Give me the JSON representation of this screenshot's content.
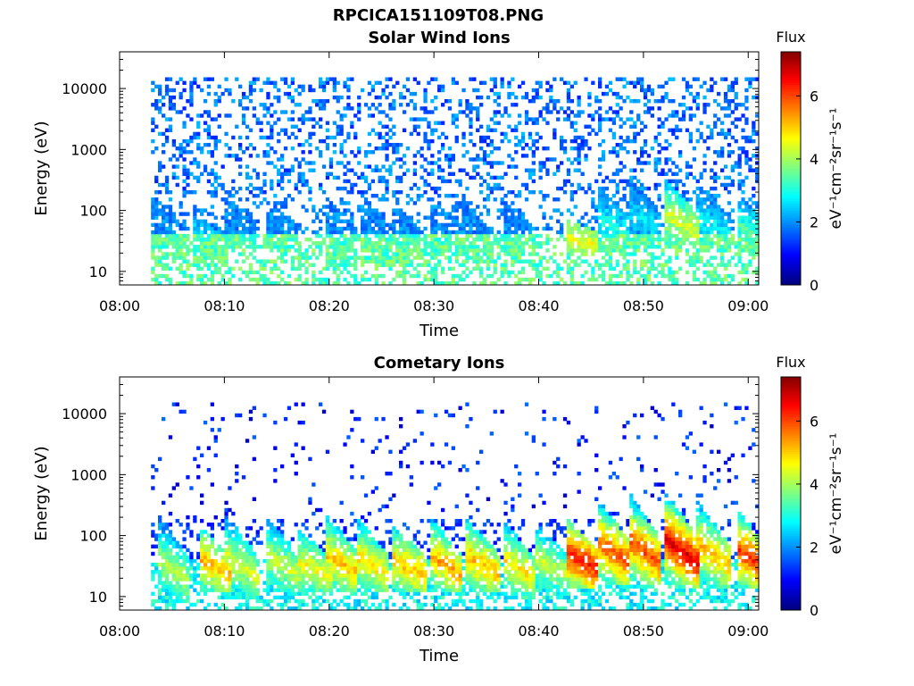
{
  "figure": {
    "title": "RPCICA151109T08.PNG"
  },
  "colorbar": {
    "label": "Flux",
    "unit_label": "eV⁻¹cm⁻²sr⁻¹s⁻¹",
    "ticks": [
      "0",
      "2",
      "4",
      "6"
    ],
    "range": [
      0,
      7.4
    ],
    "colormap": "jet"
  },
  "chart_data": [
    {
      "type": "heatmap",
      "title": "Solar Wind Ions",
      "xlabel": "Time",
      "ylabel": "Energy (eV)",
      "xticks": [
        "08:00",
        "08:10",
        "08:20",
        "08:30",
        "08:40",
        "08:50",
        "09:00"
      ],
      "xlim_minutes": [
        0,
        61
      ],
      "yticks": [
        "10",
        "100",
        "1000",
        "10000"
      ],
      "ylim": [
        6,
        40000
      ],
      "yscale": "log",
      "data_start_minute": 3,
      "data_end_minute": 61,
      "background_flux": 1.5,
      "low_energy_flux": 3.4,
      "bursts": [
        {
          "t": 3.5,
          "peak_flux": 1.6,
          "e_high": 130,
          "e_low": 30
        },
        {
          "t": 7.5,
          "peak_flux": 3.0,
          "e_high": 70,
          "e_low": 15
        },
        {
          "t": 10.5,
          "peak_flux": 1.5,
          "e_high": 130,
          "e_low": 30
        },
        {
          "t": 14.5,
          "peak_flux": 1.6,
          "e_high": 110,
          "e_low": 25
        },
        {
          "t": 20.0,
          "peak_flux": 1.4,
          "e_high": 150,
          "e_low": 14
        },
        {
          "t": 23.5,
          "peak_flux": 1.5,
          "e_high": 140,
          "e_low": 16
        },
        {
          "t": 26.5,
          "peak_flux": 1.6,
          "e_high": 100,
          "e_low": 15
        },
        {
          "t": 30.0,
          "peak_flux": 1.4,
          "e_high": 140,
          "e_low": 20
        },
        {
          "t": 33.0,
          "peak_flux": 1.5,
          "e_high": 120,
          "e_low": 16
        },
        {
          "t": 37.0,
          "peak_flux": 1.5,
          "e_high": 120,
          "e_low": 18
        },
        {
          "t": 43.0,
          "peak_flux": 4.6,
          "e_high": 60,
          "e_low": 22
        },
        {
          "t": 46.0,
          "peak_flux": 3.0,
          "e_high": 200,
          "e_low": 25
        },
        {
          "t": 49.0,
          "peak_flux": 2.6,
          "e_high": 300,
          "e_low": 30
        },
        {
          "t": 52.5,
          "peak_flux": 4.4,
          "e_high": 250,
          "e_low": 30
        },
        {
          "t": 55.5,
          "peak_flux": 2.8,
          "e_high": 220,
          "e_low": 25
        },
        {
          "t": 59.5,
          "peak_flux": 3.3,
          "e_high": 120,
          "e_low": 25
        }
      ]
    },
    {
      "type": "heatmap",
      "title": "Cometary Ions",
      "xlabel": "Time",
      "ylabel": "Energy (eV)",
      "xticks": [
        "08:00",
        "08:10",
        "08:20",
        "08:30",
        "08:40",
        "08:50",
        "09:00"
      ],
      "xlim_minutes": [
        0,
        61
      ],
      "yticks": [
        "10",
        "100",
        "1000",
        "10000"
      ],
      "ylim": [
        6,
        40000
      ],
      "yscale": "log",
      "data_start_minute": 3,
      "data_end_minute": 61,
      "background_flux": 0.9,
      "low_energy_flux": 2.8,
      "bursts": [
        {
          "t": 4.0,
          "peak_flux": 4.2,
          "e_high": 180,
          "e_low": 10
        },
        {
          "t": 8.0,
          "peak_flux": 5.2,
          "e_high": 130,
          "e_low": 14
        },
        {
          "t": 10.5,
          "peak_flux": 4.4,
          "e_high": 180,
          "e_low": 12
        },
        {
          "t": 14.5,
          "peak_flux": 4.3,
          "e_high": 150,
          "e_low": 14
        },
        {
          "t": 17.5,
          "peak_flux": 4.6,
          "e_high": 100,
          "e_low": 14
        },
        {
          "t": 20.0,
          "peak_flux": 5.1,
          "e_high": 200,
          "e_low": 14
        },
        {
          "t": 23.0,
          "peak_flux": 4.9,
          "e_high": 160,
          "e_low": 14
        },
        {
          "t": 26.5,
          "peak_flux": 5.1,
          "e_high": 120,
          "e_low": 14
        },
        {
          "t": 30.0,
          "peak_flux": 5.3,
          "e_high": 160,
          "e_low": 14
        },
        {
          "t": 33.5,
          "peak_flux": 5.2,
          "e_high": 160,
          "e_low": 14
        },
        {
          "t": 37.0,
          "peak_flux": 4.8,
          "e_high": 140,
          "e_low": 12
        },
        {
          "t": 40.0,
          "peak_flux": 4.2,
          "e_high": 150,
          "e_low": 14
        },
        {
          "t": 43.0,
          "peak_flux": 6.4,
          "e_high": 160,
          "e_low": 18
        },
        {
          "t": 46.0,
          "peak_flux": 6.0,
          "e_high": 320,
          "e_low": 20
        },
        {
          "t": 49.0,
          "peak_flux": 6.0,
          "e_high": 420,
          "e_low": 18
        },
        {
          "t": 52.5,
          "peak_flux": 6.8,
          "e_high": 450,
          "e_low": 18
        },
        {
          "t": 55.5,
          "peak_flux": 5.2,
          "e_high": 300,
          "e_low": 18
        },
        {
          "t": 59.5,
          "peak_flux": 6.2,
          "e_high": 200,
          "e_low": 16
        }
      ]
    }
  ]
}
